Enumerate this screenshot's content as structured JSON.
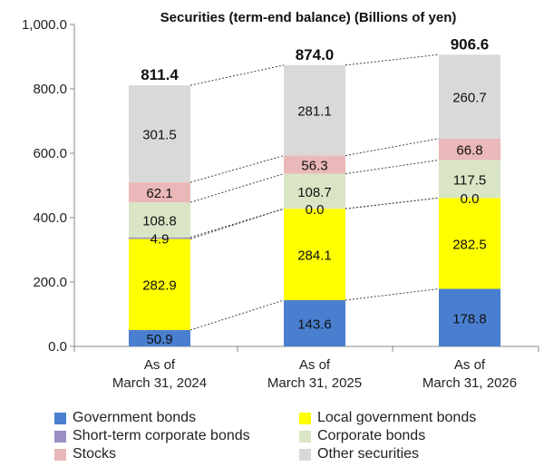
{
  "chart_data": {
    "type": "bar",
    "stacked": true,
    "title": "Securities (term-end balance) (Billions of yen)",
    "xlabel": "",
    "ylabel": "",
    "ylim": [
      0,
      1000
    ],
    "yticks": [
      "0.0",
      "200.0",
      "400.0",
      "600.0",
      "800.0",
      "1,000.0"
    ],
    "categories": [
      [
        "As of",
        "March 31, 2024"
      ],
      [
        "As of",
        "March 31, 2025"
      ],
      [
        "As of",
        "March 31, 2026"
      ]
    ],
    "totals": [
      "811.4",
      "874.0",
      "906.6"
    ],
    "series": [
      {
        "name": "Government bonds",
        "color": "#4a7fd0",
        "values": [
          50.9,
          143.6,
          178.8
        ],
        "labels": [
          "50.9",
          "143.6",
          "178.8"
        ]
      },
      {
        "name": "Local government bonds",
        "color": "#ffff00",
        "values": [
          282.9,
          284.1,
          282.5
        ],
        "labels": [
          "282.9",
          "284.1",
          "282.5"
        ]
      },
      {
        "name": "Short-term corporate bonds",
        "color": "#9b8fc4",
        "values": [
          4.9,
          0.0,
          0.0
        ],
        "labels": [
          "4.9",
          "0.0",
          "0.0"
        ]
      },
      {
        "name": "Corporate bonds",
        "color": "#d9e5c4",
        "values": [
          108.8,
          108.7,
          117.5
        ],
        "labels": [
          "108.8",
          "108.7",
          "117.5"
        ]
      },
      {
        "name": "Stocks",
        "color": "#eab8b8",
        "values": [
          62.1,
          56.3,
          66.8
        ],
        "labels": [
          "62.1",
          "56.3",
          "66.8"
        ]
      },
      {
        "name": "Other securities",
        "color": "#d9d9d9",
        "values": [
          301.5,
          281.1,
          260.7
        ],
        "labels": [
          "301.5",
          "281.1",
          "260.7"
        ]
      }
    ],
    "grid": false,
    "legend_position": "bottom"
  }
}
